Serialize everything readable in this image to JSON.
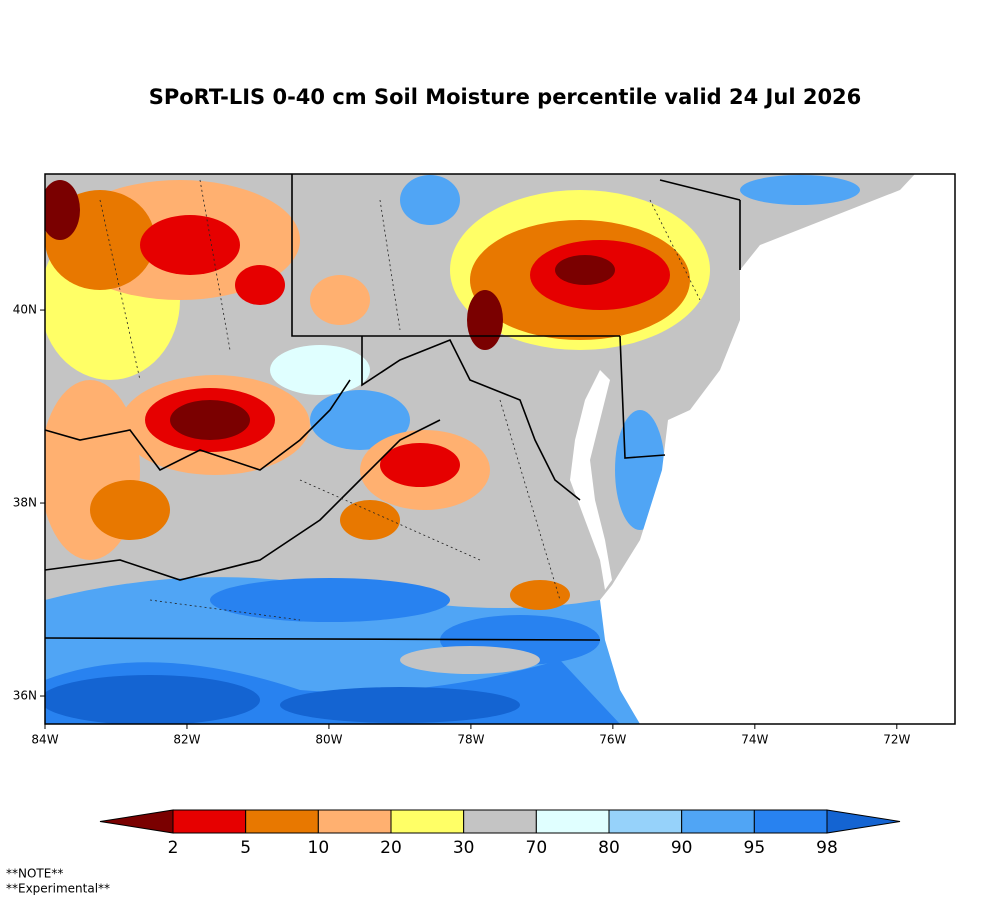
{
  "title": "SPoRT-LIS 0-40 cm Soil Moisture percentile valid 24 Jul 2026",
  "map": {
    "lonlim": [
      -84,
      -71.18
    ],
    "latlim": [
      35.71,
      41.41
    ],
    "lon_ticks": [
      {
        "value": -84,
        "label": "84W"
      },
      {
        "value": -82,
        "label": "82W"
      },
      {
        "value": -80,
        "label": "80W"
      },
      {
        "value": -78,
        "label": "78W"
      },
      {
        "value": -76,
        "label": "76W"
      },
      {
        "value": -74,
        "label": "74W"
      },
      {
        "value": -72,
        "label": "72W"
      }
    ],
    "lat_ticks": [
      {
        "value": 36,
        "label": "36N"
      },
      {
        "value": 38,
        "label": "38N"
      },
      {
        "value": 40,
        "label": "40N"
      }
    ]
  },
  "colorbar": {
    "levels": [
      2,
      5,
      10,
      20,
      30,
      70,
      80,
      90,
      95,
      98
    ],
    "colors": [
      "#7a0000",
      "#e60000",
      "#e87800",
      "#ffb070",
      "#ffff66",
      "#c4c4c4",
      "#e0ffff",
      "#96d2fa",
      "#50a5f5",
      "#2882f0",
      "#1464d2"
    ]
  },
  "notes": [
    "**NOTE**",
    "**Experimental**"
  ]
}
